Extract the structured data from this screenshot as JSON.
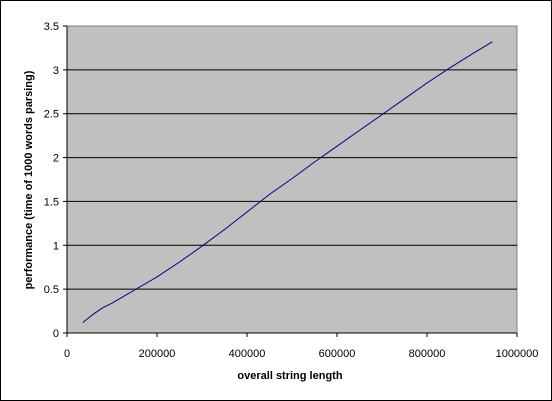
{
  "chart_data": {
    "type": "line",
    "title": "",
    "xlabel": "overall string length",
    "ylabel": "performance (time of 1000 words parsing)",
    "xlim": [
      0,
      1000000
    ],
    "ylim": [
      0,
      3.5
    ],
    "x_ticks": [
      "0",
      "200000",
      "400000",
      "600000",
      "800000",
      "1000000"
    ],
    "y_ticks": [
      "0",
      "0.5",
      "1",
      "1.5",
      "2",
      "2.5",
      "3",
      "3.5"
    ],
    "grid": "horizontal",
    "legend": "none",
    "plot_background": "#c0c0c0",
    "series": [
      {
        "color": "#000080",
        "x": [
          35000,
          60000,
          80000,
          100000,
          150000,
          200000,
          250000,
          300000,
          350000,
          400000,
          450000,
          500000,
          550000,
          600000,
          650000,
          700000,
          750000,
          800000,
          850000,
          900000,
          945000
        ],
        "y": [
          0.12,
          0.22,
          0.29,
          0.34,
          0.49,
          0.64,
          0.81,
          0.99,
          1.18,
          1.38,
          1.58,
          1.76,
          1.95,
          2.13,
          2.31,
          2.49,
          2.67,
          2.85,
          3.02,
          3.18,
          3.32
        ]
      }
    ]
  }
}
